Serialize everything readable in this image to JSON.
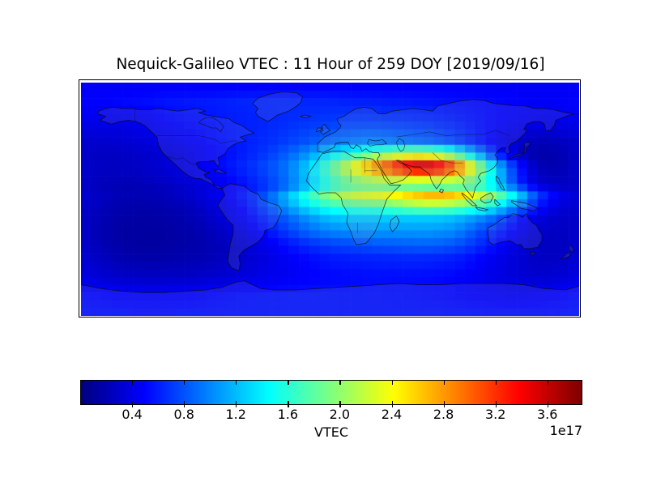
{
  "figure": {
    "title": "Nequick-Galileo VTEC : 11 Hour of 259 DOY [2019/09/16]"
  },
  "chart_data": {
    "type": "heatmap",
    "title": "Nequick-Galileo VTEC : 11 Hour of 259 DOY [2019/09/16]",
    "projection": "equirectangular world map",
    "overlay": "world coastlines and country borders",
    "colormap": "jet",
    "vmin": 0,
    "vmax": 3.87,
    "value_units": "electrons/m^2 (x 1e17)",
    "extent": {
      "lon": [
        -180,
        180
      ],
      "lat": [
        -90,
        90
      ]
    },
    "plot_cell_deg": {
      "lon": 7.5,
      "lat": 6
    },
    "colorbar": {
      "label": "VTEC",
      "offset_text": "1e17",
      "orientation": "horizontal",
      "ticks": [
        0.4,
        0.8,
        1.2,
        1.6,
        2.0,
        2.4,
        2.8,
        3.2,
        3.6
      ],
      "tick_labels": [
        "0.4",
        "0.8",
        "1.2",
        "1.6",
        "2.0",
        "2.4",
        "2.8",
        "3.2",
        "3.6"
      ]
    },
    "grid": {
      "lon_nodes": [
        -180,
        -165,
        -150,
        -135,
        -120,
        -105,
        -90,
        -75,
        -60,
        -45,
        -30,
        -15,
        0,
        15,
        30,
        45,
        60,
        75,
        90,
        105,
        120,
        135,
        150,
        165,
        180
      ],
      "lat_nodes": [
        90,
        75,
        60,
        45,
        35,
        25,
        15,
        8,
        2,
        -5,
        -15,
        -25,
        -35,
        -45,
        -60,
        -75,
        -90
      ],
      "values_1e17": [
        [
          0.45,
          0.45,
          0.45,
          0.45,
          0.45,
          0.45,
          0.45,
          0.45,
          0.45,
          0.45,
          0.45,
          0.45,
          0.45,
          0.45,
          0.45,
          0.45,
          0.45,
          0.45,
          0.45,
          0.45,
          0.45,
          0.45,
          0.45,
          0.45,
          0.45
        ],
        [
          0.48,
          0.48,
          0.5,
          0.52,
          0.55,
          0.57,
          0.58,
          0.6,
          0.62,
          0.63,
          0.63,
          0.62,
          0.62,
          0.6,
          0.6,
          0.58,
          0.57,
          0.55,
          0.53,
          0.52,
          0.5,
          0.48,
          0.46,
          0.46,
          0.48
        ],
        [
          0.42,
          0.4,
          0.4,
          0.42,
          0.48,
          0.52,
          0.55,
          0.58,
          0.6,
          0.62,
          0.65,
          0.68,
          0.7,
          0.72,
          0.72,
          0.7,
          0.68,
          0.65,
          0.6,
          0.55,
          0.5,
          0.45,
          0.4,
          0.4,
          0.42
        ],
        [
          0.3,
          0.3,
          0.32,
          0.35,
          0.4,
          0.45,
          0.5,
          0.55,
          0.6,
          0.65,
          0.72,
          0.8,
          0.9,
          0.95,
          1.0,
          0.95,
          0.9,
          0.85,
          0.75,
          0.6,
          0.45,
          0.3,
          0.22,
          0.25,
          0.3
        ],
        [
          0.28,
          0.26,
          0.26,
          0.28,
          0.32,
          0.38,
          0.45,
          0.52,
          0.6,
          0.7,
          0.85,
          1.05,
          1.35,
          1.55,
          1.8,
          2.0,
          2.2,
          2.1,
          1.7,
          1.15,
          0.6,
          0.28,
          0.15,
          0.18,
          0.28
        ],
        [
          0.3,
          0.25,
          0.25,
          0.28,
          0.32,
          0.38,
          0.45,
          0.55,
          0.65,
          0.78,
          0.95,
          1.3,
          1.8,
          2.4,
          2.9,
          3.4,
          3.8,
          3.8,
          3.3,
          2.3,
          1.3,
          0.6,
          0.22,
          0.18,
          0.3
        ],
        [
          0.28,
          0.24,
          0.22,
          0.24,
          0.28,
          0.33,
          0.4,
          0.48,
          0.58,
          0.72,
          0.92,
          1.25,
          1.65,
          1.95,
          2.15,
          2.25,
          2.3,
          2.3,
          2.2,
          1.9,
          1.3,
          0.65,
          0.28,
          0.24,
          0.28
        ],
        [
          0.28,
          0.22,
          0.19,
          0.2,
          0.23,
          0.28,
          0.35,
          0.44,
          0.55,
          0.7,
          0.95,
          1.3,
          1.65,
          1.85,
          1.9,
          1.85,
          1.8,
          1.75,
          1.8,
          1.75,
          1.4,
          0.9,
          0.45,
          0.3,
          0.28
        ],
        [
          0.32,
          0.25,
          0.21,
          0.2,
          0.23,
          0.28,
          0.36,
          0.46,
          0.6,
          0.85,
          1.25,
          1.7,
          2.05,
          2.3,
          2.4,
          2.5,
          2.75,
          2.9,
          2.8,
          2.45,
          2.0,
          1.4,
          0.75,
          0.45,
          0.32
        ],
        [
          0.3,
          0.22,
          0.17,
          0.16,
          0.18,
          0.22,
          0.3,
          0.4,
          0.55,
          0.8,
          1.1,
          1.4,
          1.6,
          1.7,
          1.75,
          1.8,
          1.95,
          2.0,
          1.9,
          1.7,
          1.4,
          1.0,
          0.55,
          0.35,
          0.3
        ],
        [
          0.28,
          0.2,
          0.15,
          0.14,
          0.15,
          0.18,
          0.25,
          0.35,
          0.48,
          0.65,
          0.85,
          1.05,
          1.2,
          1.25,
          1.25,
          1.25,
          1.25,
          1.25,
          1.2,
          1.05,
          0.85,
          0.55,
          0.35,
          0.28,
          0.28
        ],
        [
          0.28,
          0.18,
          0.13,
          0.12,
          0.13,
          0.15,
          0.2,
          0.28,
          0.4,
          0.55,
          0.72,
          0.88,
          0.98,
          1.02,
          1.05,
          1.05,
          1.05,
          1.05,
          1.0,
          0.8,
          0.62,
          0.45,
          0.3,
          0.25,
          0.28
        ],
        [
          0.3,
          0.2,
          0.14,
          0.12,
          0.13,
          0.15,
          0.18,
          0.24,
          0.32,
          0.42,
          0.55,
          0.65,
          0.72,
          0.76,
          0.8,
          0.82,
          0.85,
          0.85,
          0.8,
          0.68,
          0.52,
          0.36,
          0.26,
          0.24,
          0.3
        ],
        [
          0.32,
          0.24,
          0.18,
          0.16,
          0.16,
          0.18,
          0.2,
          0.25,
          0.3,
          0.38,
          0.46,
          0.52,
          0.58,
          0.6,
          0.62,
          0.63,
          0.64,
          0.63,
          0.6,
          0.52,
          0.42,
          0.32,
          0.26,
          0.26,
          0.32
        ],
        [
          0.38,
          0.32,
          0.28,
          0.26,
          0.26,
          0.27,
          0.29,
          0.32,
          0.36,
          0.4,
          0.44,
          0.47,
          0.5,
          0.51,
          0.52,
          0.52,
          0.52,
          0.51,
          0.49,
          0.44,
          0.38,
          0.33,
          0.3,
          0.32,
          0.38
        ],
        [
          0.52,
          0.5,
          0.48,
          0.47,
          0.47,
          0.48,
          0.5,
          0.52,
          0.54,
          0.55,
          0.56,
          0.56,
          0.56,
          0.55,
          0.55,
          0.54,
          0.53,
          0.52,
          0.5,
          0.48,
          0.46,
          0.45,
          0.46,
          0.48,
          0.52
        ],
        [
          0.55,
          0.55,
          0.55,
          0.55,
          0.55,
          0.55,
          0.55,
          0.55,
          0.55,
          0.55,
          0.55,
          0.55,
          0.55,
          0.55,
          0.55,
          0.55,
          0.55,
          0.55,
          0.55,
          0.55,
          0.55,
          0.55,
          0.55,
          0.55,
          0.55
        ]
      ]
    }
  }
}
